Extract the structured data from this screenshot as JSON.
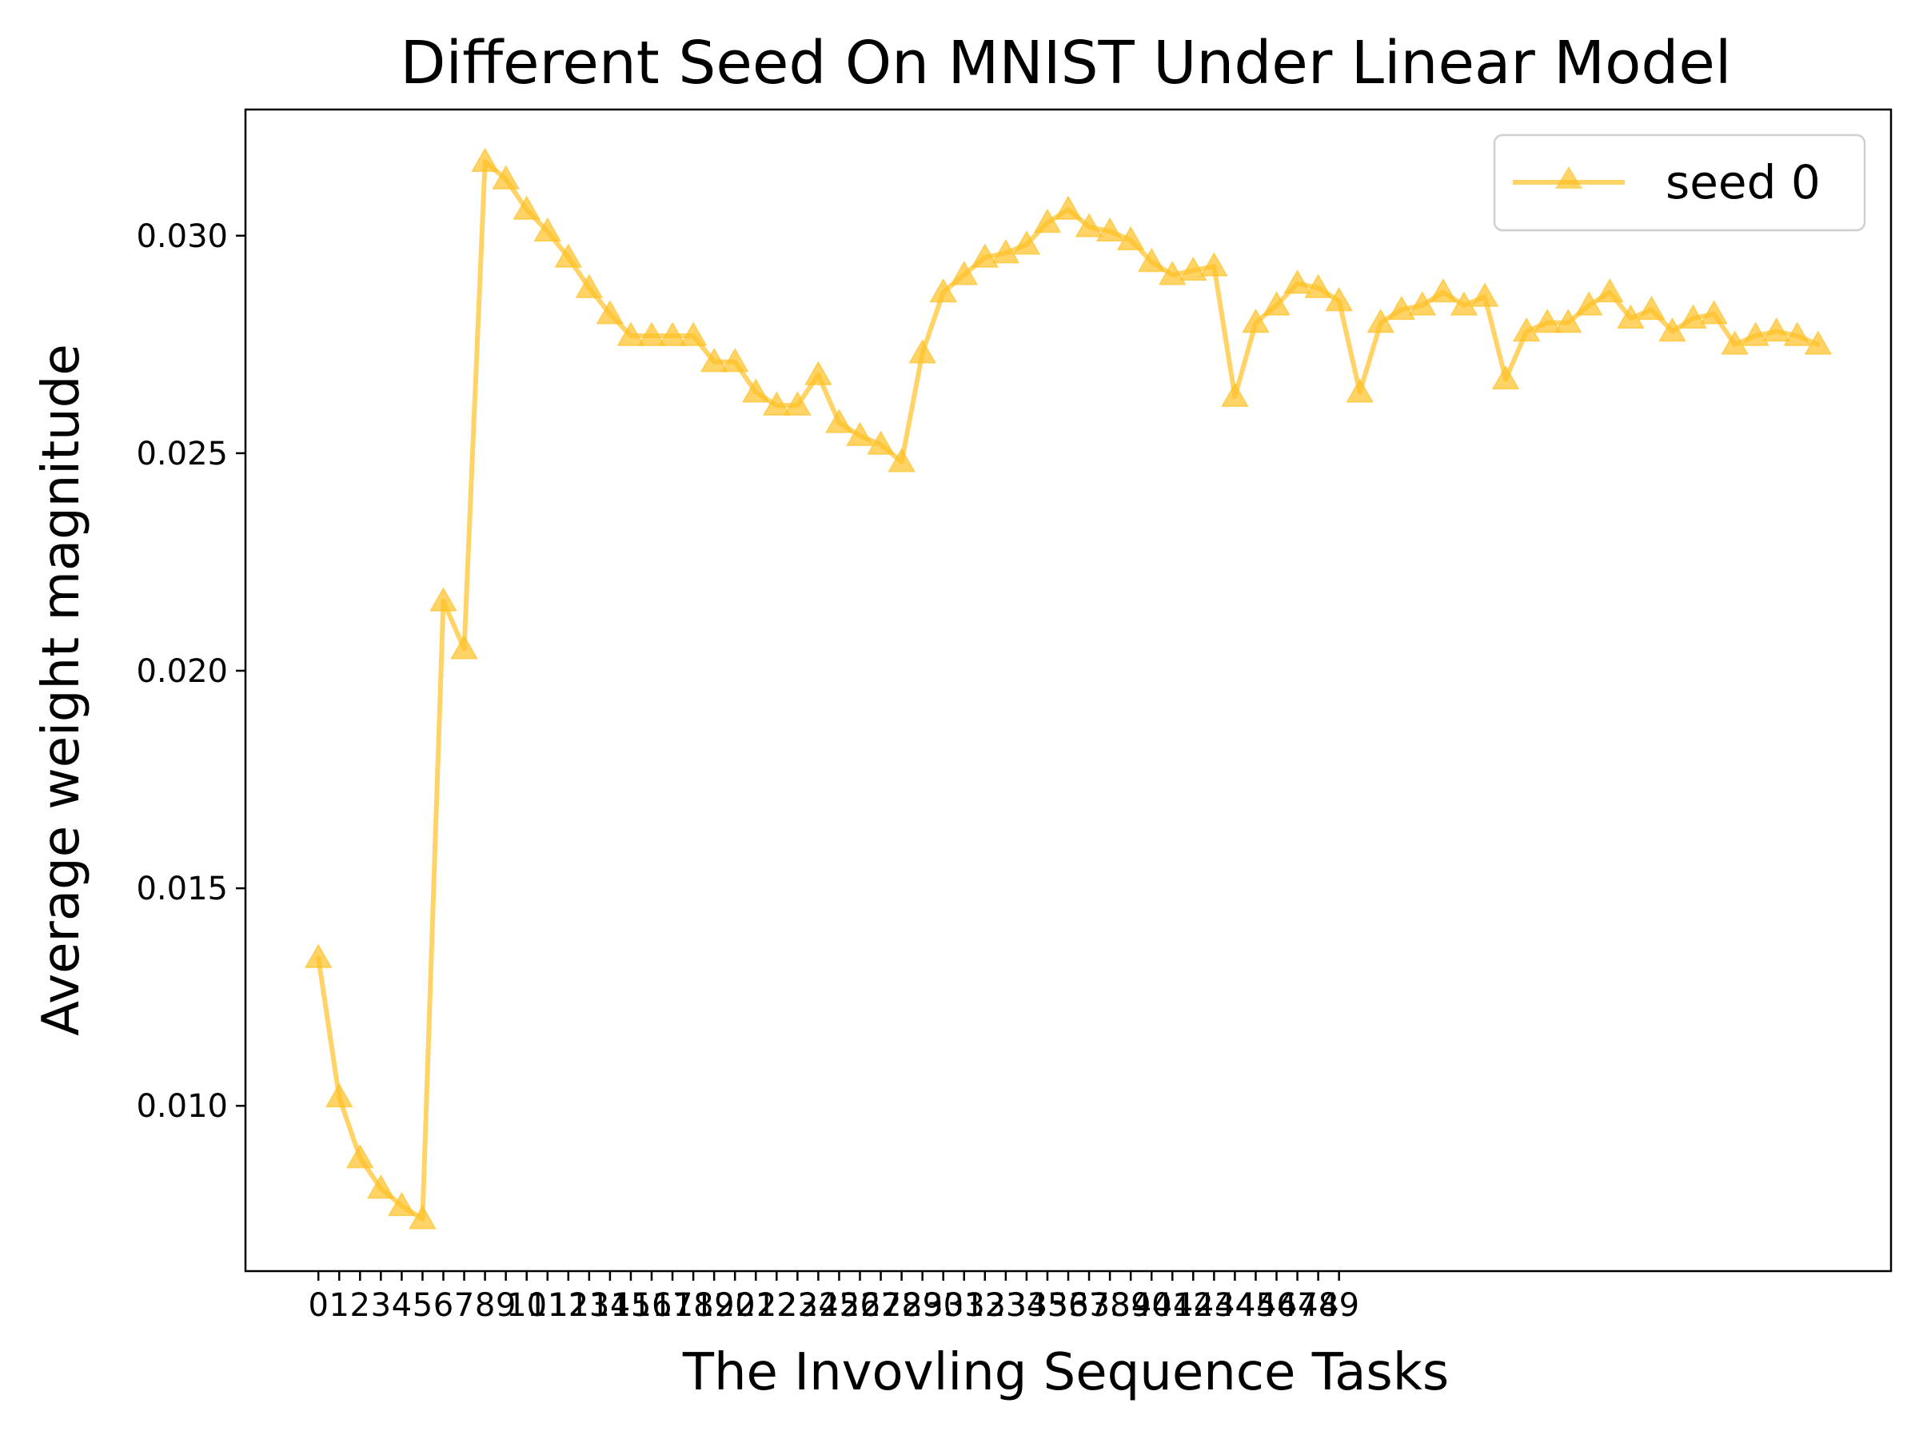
{
  "chart_data": {
    "type": "line",
    "title": "Different Seed On MNIST Under Linear Model",
    "xlabel": "The Invovling Sequence Tasks",
    "ylabel": "Average weight magnitude",
    "xlim": [
      -3.5,
      75.5
    ],
    "ylim": [
      0.0062,
      0.0329
    ],
    "yticks": [
      0.01,
      0.015,
      0.02,
      0.025,
      0.03
    ],
    "ytick_labels": [
      "0.010",
      "0.015",
      "0.020",
      "0.025",
      "0.030"
    ],
    "xticks": [
      0,
      1,
      2,
      3,
      4,
      5,
      6,
      7,
      8,
      9,
      10,
      11,
      12,
      13,
      14,
      15,
      16,
      17,
      18,
      19,
      20,
      21,
      22,
      23,
      24,
      25,
      26,
      27,
      28,
      29,
      30,
      31,
      32,
      33,
      34,
      35,
      36,
      37,
      38,
      39,
      40,
      41,
      42,
      43,
      44,
      45,
      46,
      47,
      48,
      49
    ],
    "xtick_labels": [
      "0",
      "1",
      "2",
      "3",
      "4",
      "5",
      "6",
      "7",
      "8",
      "9",
      "10",
      "11",
      "12",
      "13",
      "14",
      "15",
      "16",
      "17",
      "18",
      "19",
      "20",
      "21",
      "22",
      "23",
      "24",
      "25",
      "26",
      "27",
      "28",
      "29",
      "30",
      "31",
      "32",
      "33",
      "34",
      "35",
      "36",
      "37",
      "38",
      "39",
      "40",
      "41",
      "42",
      "43",
      "44",
      "45",
      "46",
      "47",
      "48",
      "49"
    ],
    "grid": false,
    "legend_position": "top-right",
    "series": [
      {
        "name": "seed 0",
        "color": "#FFC125",
        "marker": "triangle-up",
        "x": [
          0,
          1,
          2,
          3,
          4,
          5,
          6,
          7,
          8,
          9,
          10,
          11,
          12,
          13,
          14,
          15,
          16,
          17,
          18,
          19,
          20,
          21,
          22,
          23,
          24,
          25,
          26,
          27,
          28,
          29,
          30,
          31,
          32,
          33,
          34,
          35,
          36,
          37,
          38,
          39,
          40,
          41,
          42,
          43,
          44,
          45,
          46,
          47,
          48,
          49,
          50,
          51,
          52,
          53,
          54,
          55,
          56,
          57,
          58,
          59,
          60,
          61,
          62,
          63,
          64,
          65,
          66,
          67,
          68,
          69,
          70,
          71,
          72
        ],
        "y": [
          0.0134,
          0.0102,
          0.0088,
          0.0081,
          0.0077,
          0.0074,
          0.0216,
          0.0205,
          0.0317,
          0.0313,
          0.0306,
          0.0301,
          0.0295,
          0.0288,
          0.0282,
          0.0277,
          0.0277,
          0.0277,
          0.0277,
          0.0271,
          0.0271,
          0.0264,
          0.0261,
          0.0261,
          0.0268,
          0.0257,
          0.0254,
          0.0252,
          0.0248,
          0.0273,
          0.0287,
          0.0291,
          0.0295,
          0.0296,
          0.0298,
          0.0303,
          0.0306,
          0.0302,
          0.0301,
          0.0299,
          0.0294,
          0.0291,
          0.0292,
          0.0293,
          0.0263,
          0.028,
          0.0284,
          0.0289,
          0.0288,
          0.0285,
          0.0264,
          0.028,
          0.0283,
          0.0284,
          0.0287,
          0.0284,
          0.0286,
          0.0267,
          0.0278,
          0.028,
          0.028,
          0.0284,
          0.0287,
          0.0281,
          0.0283,
          0.0278,
          0.0281,
          0.0282,
          0.0275,
          0.0277,
          0.0278,
          0.0277,
          0.0275
        ]
      }
    ]
  }
}
